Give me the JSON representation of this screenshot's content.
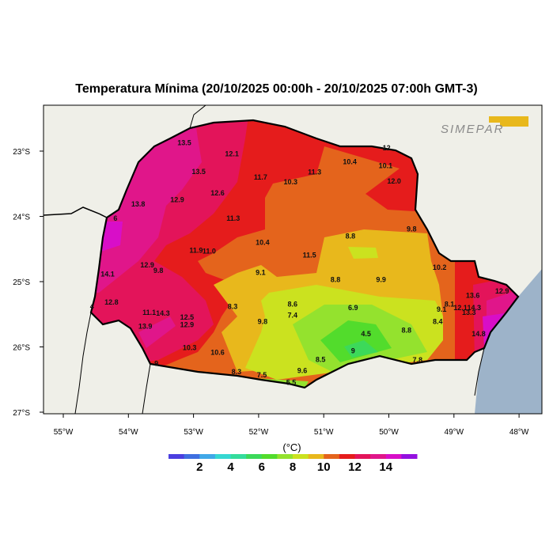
{
  "title": "Temperatura Mínima (20/10/2025 00:00h - 20/10/2025 07:00h GMT-3)",
  "logo_text": "SIMEPAR",
  "colors": {
    "background_land": "#efefe8",
    "ocean": "#9db3c9",
    "border": "#000000"
  },
  "axes": {
    "lon_ticks": [
      {
        "lon": -55,
        "label": "55°W"
      },
      {
        "lon": -54,
        "label": "54°W"
      },
      {
        "lon": -53,
        "label": "53°W"
      },
      {
        "lon": -52,
        "label": "52°W"
      },
      {
        "lon": -51,
        "label": "51°W"
      },
      {
        "lon": -50,
        "label": "50°W"
      },
      {
        "lon": -49,
        "label": "49°W"
      },
      {
        "lon": -48,
        "label": "48°W"
      }
    ],
    "lat_ticks": [
      {
        "lat": -23,
        "label": "23°S"
      },
      {
        "lat": -24,
        "label": "24°S"
      },
      {
        "lat": -25,
        "label": "25°S"
      },
      {
        "lat": -26,
        "label": "26°S"
      },
      {
        "lat": -27,
        "label": "27°S"
      }
    ]
  },
  "colorbar": {
    "unit": "(°C)",
    "min": 0,
    "max": 16,
    "colors": [
      "#4b3fe0",
      "#3f6fe0",
      "#40a8e8",
      "#36d8d2",
      "#34dc9c",
      "#3cd95a",
      "#52dc2c",
      "#94e22e",
      "#cbe21f",
      "#e8b81c",
      "#e4641c",
      "#e51c1c",
      "#e3145a",
      "#e0168a",
      "#d80ec8",
      "#9410e0"
    ],
    "tick_labels": [
      "2",
      "4",
      "6",
      "8",
      "10",
      "12",
      "14"
    ],
    "tick_values": [
      2,
      4,
      6,
      8,
      10,
      12,
      14
    ]
  },
  "stations": [
    {
      "v": "13.5",
      "lon": -53.14,
      "lat": -22.88
    },
    {
      "v": "12.1",
      "lon": -52.41,
      "lat": -23.05
    },
    {
      "v": "13.5",
      "lon": -52.92,
      "lat": -23.32
    },
    {
      "v": "11.7",
      "lon": -51.97,
      "lat": -23.41
    },
    {
      "v": "11.3",
      "lon": -51.14,
      "lat": -23.33
    },
    {
      "v": "10.4",
      "lon": -50.6,
      "lat": -23.17
    },
    {
      "v": "10.1",
      "lon": -50.05,
      "lat": -23.23
    },
    {
      "v": "12.0",
      "lon": -49.92,
      "lat": -23.47
    },
    {
      "v": "12.",
      "lon": -50.02,
      "lat": -22.96
    },
    {
      "v": "10.3",
      "lon": -51.51,
      "lat": -23.48
    },
    {
      "v": "12.6",
      "lon": -52.63,
      "lat": -23.65
    },
    {
      "v": "12.9",
      "lon": -53.25,
      "lat": -23.75
    },
    {
      "v": "13.8",
      "lon": -53.85,
      "lat": -23.82
    },
    {
      "v": "6",
      "lon": -54.2,
      "lat": -24.04
    },
    {
      "v": "11.3",
      "lon": -52.39,
      "lat": -24.04
    },
    {
      "v": "9.8",
      "lon": -49.65,
      "lat": -24.2
    },
    {
      "v": "8.8",
      "lon": -50.59,
      "lat": -24.31
    },
    {
      "v": "10.4",
      "lon": -51.94,
      "lat": -24.41
    },
    {
      "v": "11.9",
      "lon": -52.96,
      "lat": -24.53
    },
    {
      "v": "11.0",
      "lon": -52.76,
      "lat": -24.54
    },
    {
      "v": "11.5",
      "lon": -51.22,
      "lat": -24.6
    },
    {
      "v": "12.9",
      "lon": -53.71,
      "lat": -24.75
    },
    {
      "v": "9.8",
      "lon": -53.54,
      "lat": -24.84
    },
    {
      "v": "9.1",
      "lon": -51.97,
      "lat": -24.87
    },
    {
      "v": "10.2",
      "lon": -49.22,
      "lat": -24.79
    },
    {
      "v": "14.1",
      "lon": -54.32,
      "lat": -24.89
    },
    {
      "v": "8.8",
      "lon": -50.82,
      "lat": -24.98
    },
    {
      "v": "9.9",
      "lon": -50.12,
      "lat": -24.98
    },
    {
      "v": "12.8",
      "lon": -54.26,
      "lat": -25.32
    },
    {
      "v": "4",
      "lon": -54.56,
      "lat": -25.39
    },
    {
      "v": "8.3",
      "lon": -52.4,
      "lat": -25.39
    },
    {
      "v": "8.6",
      "lon": -51.48,
      "lat": -25.35
    },
    {
      "v": "6.9",
      "lon": -50.55,
      "lat": -25.41
    },
    {
      "v": "13.6",
      "lon": -48.71,
      "lat": -25.22
    },
    {
      "v": "12.9",
      "lon": -48.26,
      "lat": -25.15
    },
    {
      "v": "8.1",
      "lon": -49.07,
      "lat": -25.35
    },
    {
      "v": "9.1",
      "lon": -49.19,
      "lat": -25.43
    },
    {
      "v": "12.1",
      "lon": -48.9,
      "lat": -25.41
    },
    {
      "v": "14.3",
      "lon": -48.69,
      "lat": -25.41
    },
    {
      "v": "13.3",
      "lon": -48.77,
      "lat": -25.48
    },
    {
      "v": "11.1",
      "lon": -53.68,
      "lat": -25.48
    },
    {
      "v": "14.3",
      "lon": -53.47,
      "lat": -25.49
    },
    {
      "v": "12.5",
      "lon": -53.1,
      "lat": -25.55
    },
    {
      "v": "7.4",
      "lon": -51.48,
      "lat": -25.52
    },
    {
      "v": "9.8",
      "lon": -51.94,
      "lat": -25.62
    },
    {
      "v": "12.9",
      "lon": -53.1,
      "lat": -25.67
    },
    {
      "v": "8.4",
      "lon": -49.25,
      "lat": -25.62
    },
    {
      "v": "8.8",
      "lon": -49.73,
      "lat": -25.75
    },
    {
      "v": "13.9",
      "lon": -53.74,
      "lat": -25.69
    },
    {
      "v": "4.5",
      "lon": -50.35,
      "lat": -25.81
    },
    {
      "v": "14.8",
      "lon": -48.62,
      "lat": -25.81
    },
    {
      "v": "10.3",
      "lon": -53.06,
      "lat": -26.02
    },
    {
      "v": "10.6",
      "lon": -52.63,
      "lat": -26.09
    },
    {
      "v": "9",
      "lon": -50.55,
      "lat": -26.07
    },
    {
      "v": "7.8",
      "lon": -49.56,
      "lat": -26.21
    },
    {
      "v": "8.5",
      "lon": -51.05,
      "lat": -26.2
    },
    {
      "v": "9",
      "lon": -53.57,
      "lat": -26.26
    },
    {
      "v": "9.6",
      "lon": -51.33,
      "lat": -26.37
    },
    {
      "v": "8.3",
      "lon": -52.34,
      "lat": -26.39
    },
    {
      "v": "7.5",
      "lon": -51.95,
      "lat": -26.44
    },
    {
      "v": "5.5",
      "lon": -51.5,
      "lat": -26.55
    }
  ]
}
